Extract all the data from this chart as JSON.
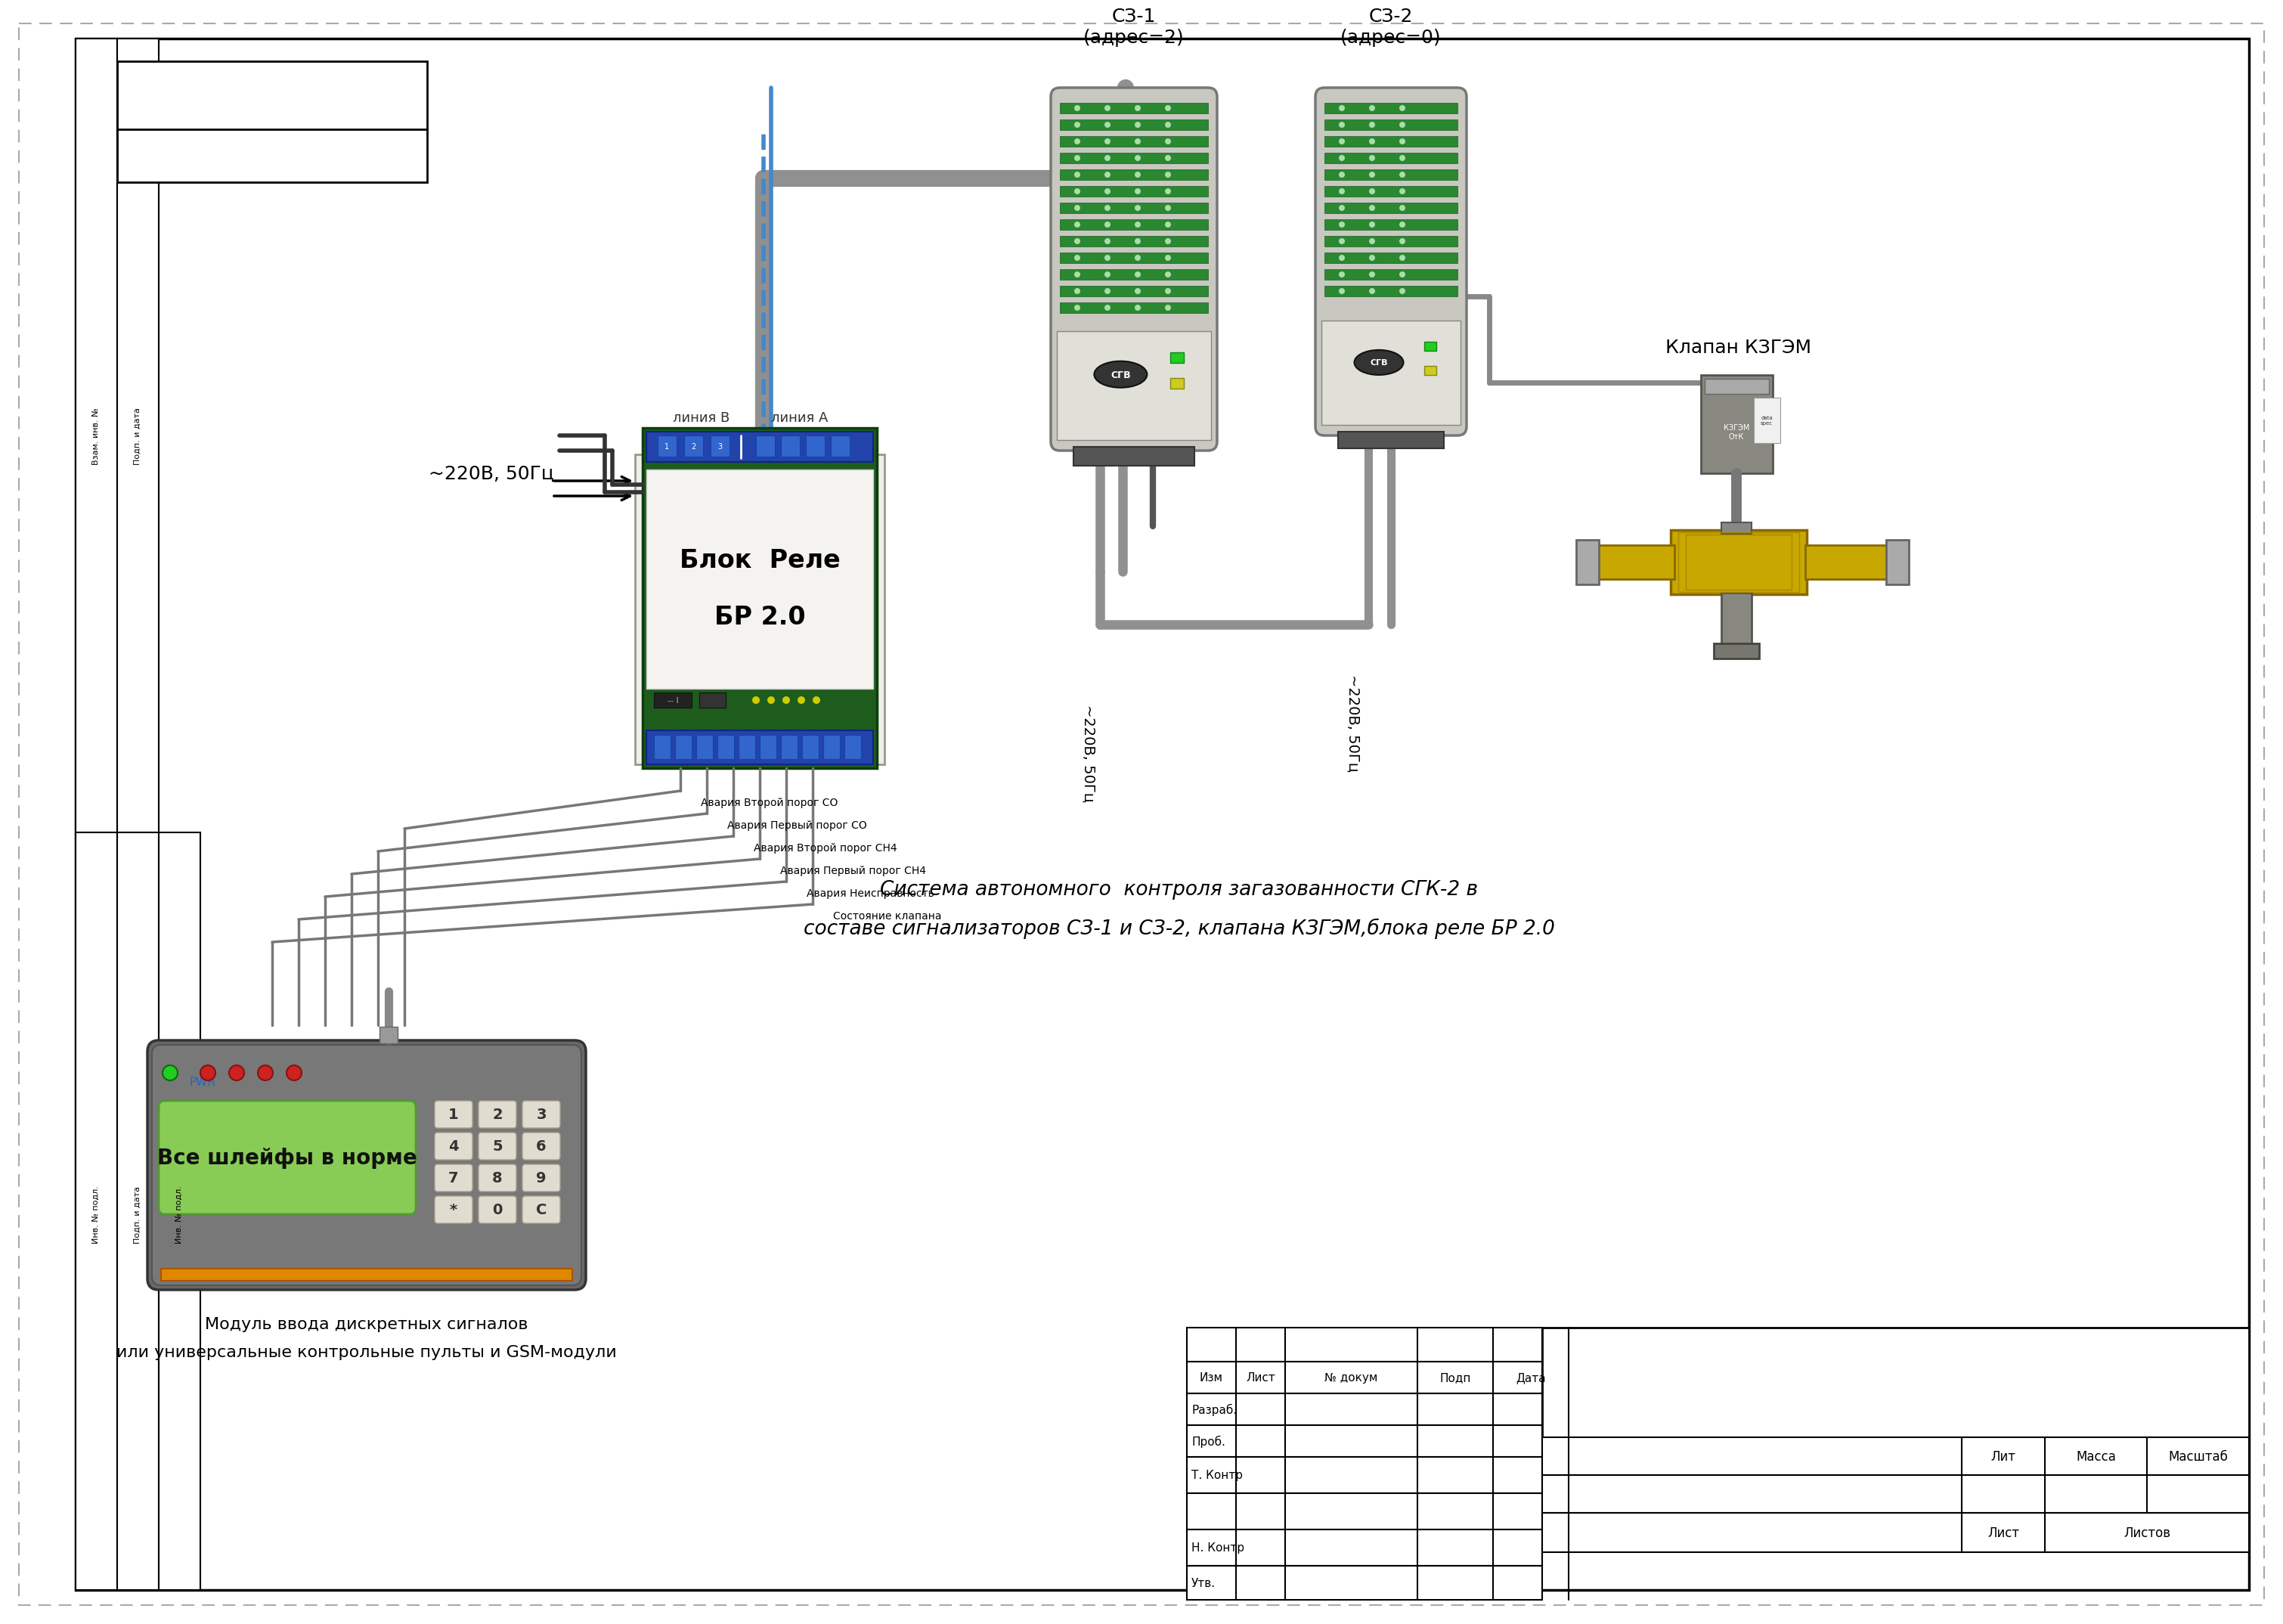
{
  "bg_color": "#ffffff",
  "sz1_label": "СЗ-1\n(адрес=2)",
  "sz2_label": "СЗ-2\n(адрес=0)",
  "relay_label1": "Блок  Реле",
  "relay_label2": "БР 2.0",
  "klap_label": "Клапан КЗГЭМ",
  "power_label": "~220В, 50Гц",
  "line_b": "линия В",
  "line_a": "линия А",
  "module_line1": "Модуль ввода дискретных сигналов",
  "module_line2": "или универсальные контрольные пульты и GSM-модули",
  "signal1": "Авария Второй порог CO",
  "signal2": "Авария Первый порог CO",
  "signal3": "Авария Второй порог CH4",
  "signal4": "Авария Первый порог CH4",
  "signal5": "Авария Неисправность",
  "signal6": "Состояние клапана",
  "desc_line1": "Система автономного  контроля загазованности СГК-2 в",
  "desc_line2": "составе сигнализаторов СЗ-1 и СЗ-2, клапана КЗГЭМ,блока реле БР 2.0",
  "tb_izm": "Изм",
  "tb_list": "Лист",
  "tb_doc": "№ докум",
  "tb_podp": "Подп",
  "tb_data": "Дата",
  "tb_razrab": "Разраб.",
  "tb_prob": "Проб.",
  "tb_tkont": "Т. Контр",
  "tb_nkont": "Н. Контр",
  "tb_utv": "Утв.",
  "tb_lit": "Лит",
  "tb_massa": "Масса",
  "tb_masshtab": "Масштаб",
  "tb_listval": "Лист",
  "tb_listovval": "Листов",
  "pwr_display": "Все шлейфы в норме",
  "pwr_label": "PWR",
  "power_220_1": "~220В, 50Гц",
  "power_220_2": "~220В, 50Гц",
  "sgv_logo": "СГВ"
}
